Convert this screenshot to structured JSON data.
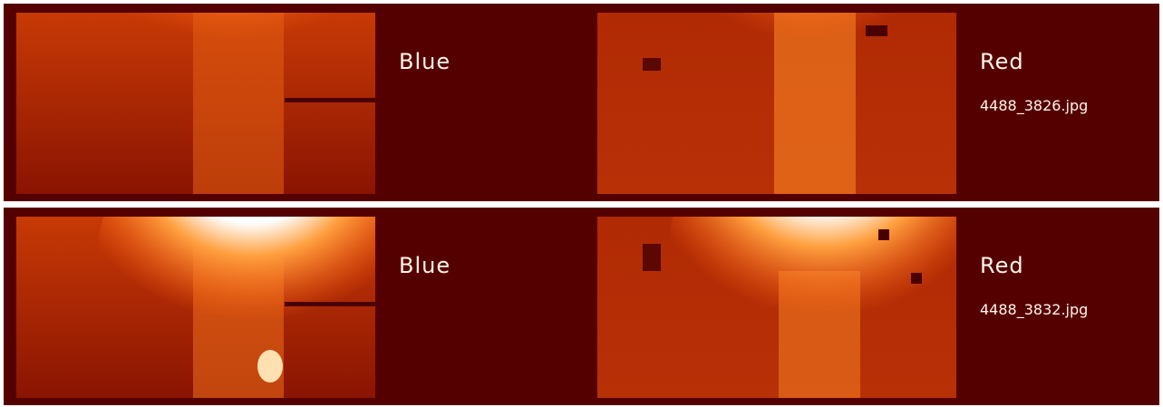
{
  "panels": [
    {
      "left_label": "Blue",
      "right_label": "Red",
      "filename": "4488_3826.jpg"
    },
    {
      "left_label": "Blue",
      "right_label": "Red",
      "filename": "4488_3832.jpg"
    }
  ]
}
